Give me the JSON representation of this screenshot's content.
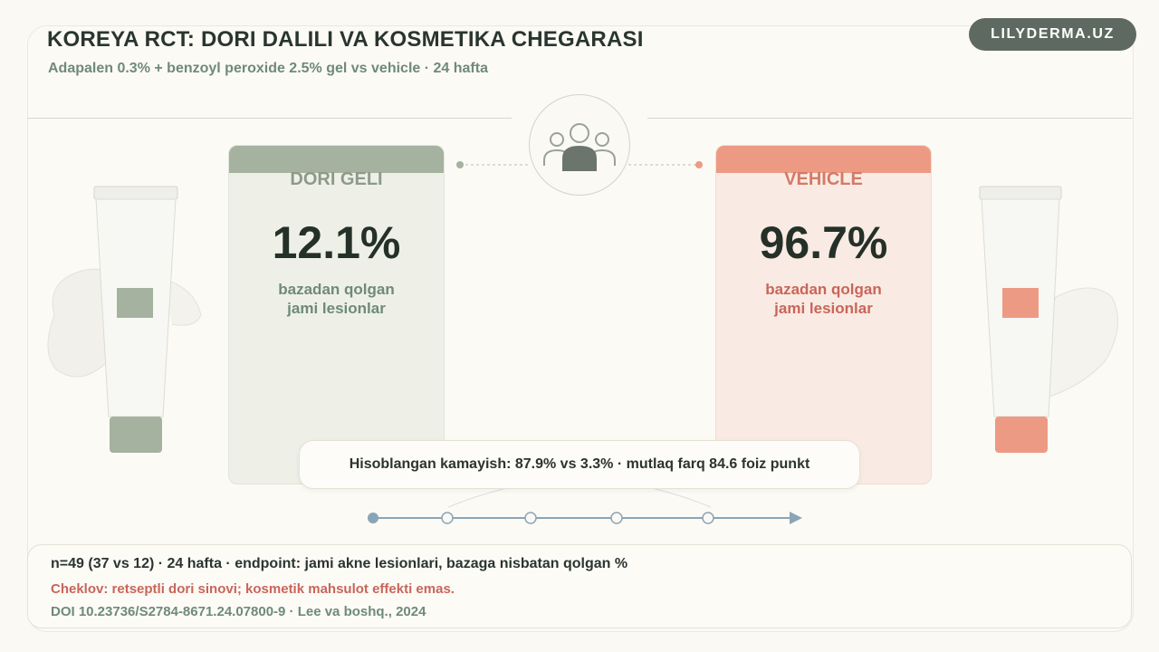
{
  "header": {
    "title": "KOREYA RCT: DORI DALILI VA KOSMETIKA CHEGARASI",
    "subtitle": "Adapalen 0.3% + benzoyl peroxide 2.5% gel vs vehicle · 24 hafta",
    "brand": "LILYDERMA.UZ"
  },
  "icons": {
    "center": "people-group-icon",
    "left_product": "cream-tube-icon",
    "right_product": "cream-tube-icon"
  },
  "colors": {
    "drug_accent": "#a5b29f",
    "vehicle_accent": "#ed9a84",
    "timeline": "#8aa5b8"
  },
  "cards": {
    "drug": {
      "label": "DORI GELI",
      "value": "12.1%",
      "desc_line1": "bazadan qolgan",
      "desc_line2": "jami lesionlar"
    },
    "vehicle": {
      "label": "VEHICLE",
      "value": "96.7%",
      "desc_line1": "bazadan qolgan",
      "desc_line2": "jami lesionlar"
    }
  },
  "summary": "Hisoblangan kamayish: 87.9% vs 3.3% · mutlaq farq 84.6 foiz punkt",
  "footer": {
    "line1": "n=49 (37 vs 12) · 24 hafta · endpoint: jami akne lesionlari, bazaga nisbatan qolgan %",
    "line2": "Cheklov: retseptli dori sinovi; kosmetik mahsulot effekti emas.",
    "line3": "DOI 10.23736/S2784-8671.24.07800-9 · Lee va boshq., 2024"
  }
}
